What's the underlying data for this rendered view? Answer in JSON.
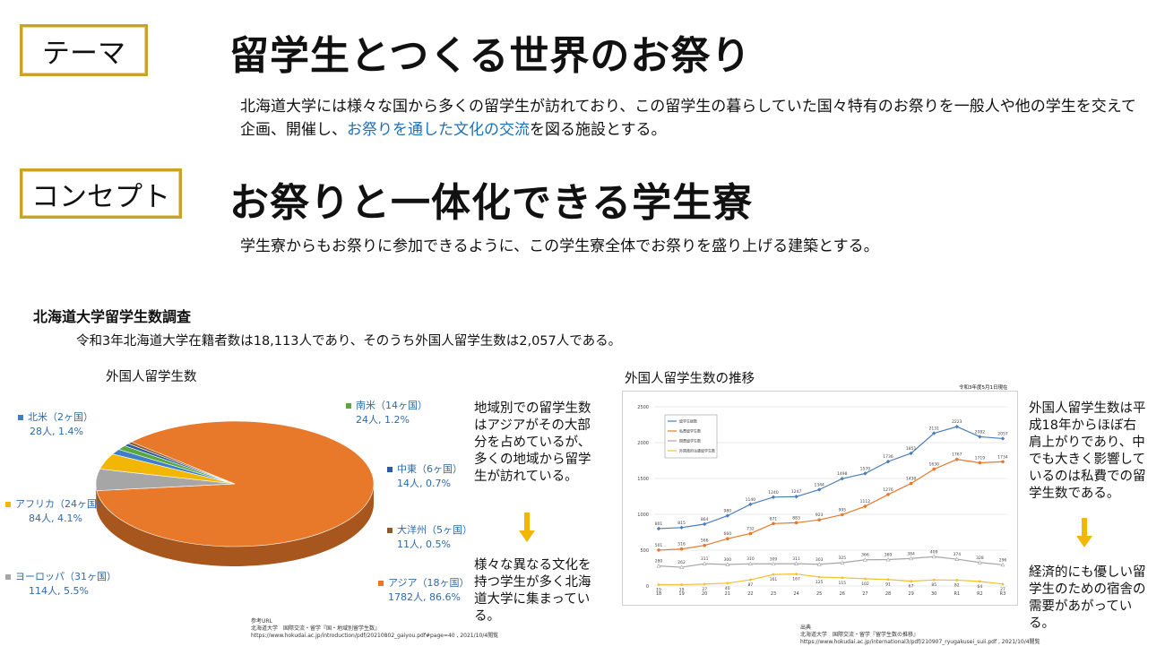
{
  "header": {
    "theme_tag": "テーマ",
    "theme_title": "留学生とつくる世界のお祭り",
    "theme_desc_before": "北海道大学には様々な国から多くの留学生が訪れており、この留学生の暮らしていた国々特有のお祭りを一般人や他の学生を交えて企画、開催し、",
    "theme_desc_emph": "お祭りを通した文化の交流",
    "theme_desc_after": "を図る施設とする。",
    "concept_tag": "コンセプト",
    "concept_title": "お祭りと一体化できる学生寮",
    "concept_desc": "学生寮からもお祭りに参加できるように、この学生寮全体でお祭りを盛り上げる建築とする。"
  },
  "survey": {
    "title": "北海道大学留学生数調査",
    "subtitle": "令和3年北海道大学在籍者数は18,113人であり、そのうち外国人留学生数は2,057人である。"
  },
  "pie_labels": [
    {
      "region": "南米（14ヶ国）",
      "value": "24人, 1.2%"
    },
    {
      "region": "北米（2ヶ国）",
      "value": "28人, 1.4%"
    },
    {
      "region": "中東（6ヶ国）",
      "value": "14人, 0.7%"
    },
    {
      "region": "大洋州（5ヶ国）",
      "value": "11人, 0.5%"
    },
    {
      "region": "アフリカ（24ヶ国）",
      "value": "84人, 4.1%"
    },
    {
      "region": "アジア（18ヶ国）",
      "value": "1782人, 86.6%"
    },
    {
      "region": "ヨーロッパ（31ヶ国）",
      "value": "114人, 5.5%"
    }
  ],
  "pie_ref": {
    "line1": "参考URL",
    "line2": "北海道大学　国際交流・留学『国・地域別留学生数』",
    "line3": "https://www.hokudai.ac.jp/introduction/pdf/20210802_gaiyou.pdf#page=40 , 2021/10/4閲覧"
  },
  "line_ref": {
    "line1": "出典",
    "line2": "北海道大学　国際交流・留学『留学生数の推移』",
    "line3": "https://www.hokudai.ac.jp/international3/pdf/210907_ryugakusei_suii.pdf , 2021/10/4閲覧"
  },
  "side1": {
    "text_a": "地域別での留学生数はアジアがその大部分を占めているが、多くの地域から留学生が訪れている。",
    "text_b": "様々な異なる文化を持つ学生が多く北海道大学に集まっている。"
  },
  "side2": {
    "text_a": "外国人留学生数は平成18年からほぼ右肩上がりであり、中でも大きく影響しているのは私費での留学生数である。",
    "text_b": "経済的にも優しい留学生のための宿舎の需要があがっている。"
  },
  "colors": {
    "gold": "#c9a227",
    "arrow": "#f2b705",
    "blue_text": "#1f6fb4"
  },
  "chart_data": [
    {
      "type": "pie",
      "title": "外国人留学生数",
      "series": [
        {
          "name": "アジア（18ヶ国）",
          "value": 1782,
          "percent": 86.6,
          "color": "#e8782a"
        },
        {
          "name": "ヨーロッパ（31ヶ国）",
          "value": 114,
          "percent": 5.5,
          "color": "#a6a6a6"
        },
        {
          "name": "アフリカ（24ヶ国）",
          "value": 84,
          "percent": 4.1,
          "color": "#f2b705"
        },
        {
          "name": "北米（2ヶ国）",
          "value": 28,
          "percent": 1.4,
          "color": "#3f7fc7"
        },
        {
          "name": "南米（14ヶ国）",
          "value": 24,
          "percent": 1.2,
          "color": "#5aa83c"
        },
        {
          "name": "中東（6ヶ国）",
          "value": 14,
          "percent": 0.7,
          "color": "#2d5aa0"
        },
        {
          "name": "大洋州（5ヶ国）",
          "value": 11,
          "percent": 0.5,
          "color": "#8c5a2b"
        }
      ]
    },
    {
      "type": "line",
      "title": "外国人留学生数の推移",
      "note": "令和3年度5月1日現在",
      "categories": [
        "18",
        "19",
        "20",
        "21",
        "22",
        "23",
        "24",
        "25",
        "26",
        "27",
        "28",
        "29",
        "30",
        "R1",
        "R2",
        "R3"
      ],
      "ylim": [
        0,
        2500
      ],
      "yticks": [
        0,
        500,
        1000,
        1500,
        2000,
        2500
      ],
      "series": [
        {
          "name": "留学生総数",
          "color": "#4a7ebb",
          "values": [
            801,
            815,
            864,
            980,
            1140,
            1240,
            1247,
            1344,
            1498,
            1570,
            1736,
            1851,
            2131,
            2223,
            2082,
            2057
          ]
        },
        {
          "name": "私費留学生数",
          "color": "#e8782a",
          "values": [
            501,
            516,
            566,
            660,
            732,
            871,
            883,
            923,
            995,
            1112,
            1276,
            1430,
            1630,
            1767,
            1719,
            1734
          ]
        },
        {
          "name": "国費留学生数",
          "color": "#a6a6a6",
          "values": [
            280,
            262,
            311,
            300,
            310,
            309,
            311,
            303,
            325,
            366,
            369,
            384,
            409,
            374,
            328,
            296
          ]
        },
        {
          "name": "外国政府派遣留学生数",
          "color": "#f2c12e",
          "values": [
            19,
            19,
            27,
            40,
            87,
            161,
            167,
            125,
            115,
            102,
            91,
            67,
            85,
            82,
            64,
            27
          ]
        }
      ],
      "data_labels": {
        "total": [
          "801",
          "815",
          "864",
          "980",
          "1140",
          "1240",
          "1247",
          "1344",
          "1498",
          "1570",
          "1736",
          "1851",
          "2131",
          "2223",
          "2082",
          "2057"
        ],
        "private": [
          "501",
          "516",
          "566",
          "660",
          "732",
          "871",
          "883",
          "923",
          "995",
          "1112",
          "1276",
          "1430",
          "1630",
          "1767",
          "1719",
          "1734"
        ],
        "gov": [
          "280",
          "262",
          "311",
          "300",
          "310",
          "309",
          "311",
          "303",
          "325",
          "366",
          "369",
          "384",
          "409",
          "374",
          "328",
          "296"
        ],
        "foreign": [
          "19",
          "19",
          "27",
          "40",
          "87",
          "161",
          "167",
          "125",
          "115",
          "102",
          "91",
          "67",
          "85",
          "82",
          "64",
          "27"
        ]
      }
    }
  ]
}
